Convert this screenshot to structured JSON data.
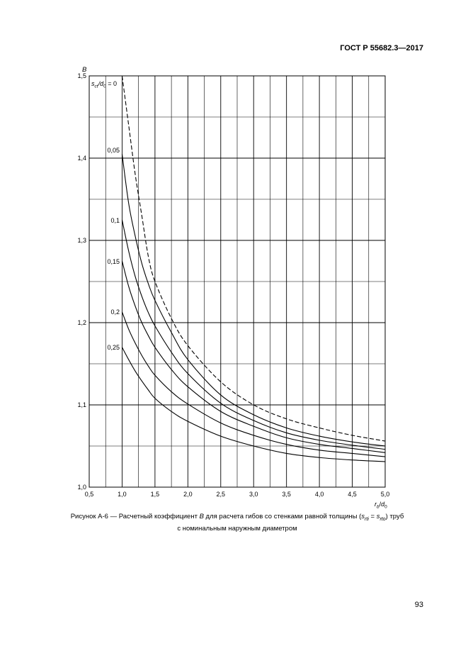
{
  "document": {
    "header": "ГОСТ Р 55682.3—2017",
    "page_number": "93"
  },
  "caption": {
    "line1_part1": "Рисунок А-6 — Расчетный коэффициент ",
    "var_B": "B",
    "line1_part2": " для расчета гибов со стенками равной толщины (",
    "s_rti": "s",
    "s_rti_sub": "rti",
    "eq": " = ",
    "s_rto": "s",
    "s_rto_sub": "rto",
    "line1_part3": ") труб",
    "line2": "с номинальным наружным диаметром"
  },
  "chart_data": {
    "type": "line",
    "ylabel": "B",
    "xlabel_main": "r",
    "xlabel_sub_main": "b",
    "xlabel_sep": "/",
    "xlabel_den": "d",
    "xlabel_sub_den": "0",
    "xlim": [
      0.5,
      5.0
    ],
    "ylim": [
      1.0,
      1.5
    ],
    "x_ticks": [
      "0,5",
      "1,0",
      "1,5",
      "2,0",
      "2,5",
      "3,0",
      "3,5",
      "4,0",
      "4,5",
      "5,0"
    ],
    "y_ticks": [
      "1,0",
      "1,1",
      "1,2",
      "1,3",
      "1,4",
      "1,5"
    ],
    "series_label_prefix": "s",
    "series_label_prefix_sub": "ct",
    "series_label_sep": "/d",
    "series_label_den_sub": "0",
    "series_label_eq": " = ",
    "grid": true,
    "series": [
      {
        "name": "0",
        "dashed": true,
        "x": [
          1.0,
          1.1,
          1.2,
          1.3,
          1.4,
          1.5,
          1.75,
          2.0,
          2.5,
          3.0,
          3.5,
          4.0,
          4.5,
          5.0
        ],
        "y": [
          1.5,
          1.44,
          1.38,
          1.33,
          1.28,
          1.25,
          1.205,
          1.172,
          1.128,
          1.1,
          1.083,
          1.072,
          1.063,
          1.056
        ]
      },
      {
        "name": "0,05",
        "dashed": false,
        "x": [
          1.0,
          1.1,
          1.2,
          1.3,
          1.4,
          1.5,
          1.75,
          2.0,
          2.5,
          3.0,
          3.5,
          4.0,
          4.5,
          5.0
        ],
        "y": [
          1.405,
          1.345,
          1.305,
          1.272,
          1.247,
          1.227,
          1.188,
          1.155,
          1.112,
          1.088,
          1.072,
          1.062,
          1.055,
          1.05
        ]
      },
      {
        "name": "0,1",
        "dashed": false,
        "x": [
          1.0,
          1.1,
          1.2,
          1.3,
          1.4,
          1.5,
          1.75,
          2.0,
          2.5,
          3.0,
          3.5,
          4.0,
          4.5,
          5.0
        ],
        "y": [
          1.325,
          1.287,
          1.256,
          1.232,
          1.212,
          1.196,
          1.164,
          1.138,
          1.102,
          1.081,
          1.066,
          1.057,
          1.051,
          1.046
        ]
      },
      {
        "name": "0,15",
        "dashed": false,
        "x": [
          1.0,
          1.1,
          1.2,
          1.3,
          1.4,
          1.5,
          1.75,
          2.0,
          2.5,
          3.0,
          3.5,
          4.0,
          4.5,
          5.0
        ],
        "y": [
          1.275,
          1.244,
          1.22,
          1.2,
          1.184,
          1.17,
          1.143,
          1.122,
          1.092,
          1.074,
          1.06,
          1.052,
          1.047,
          1.042
        ]
      },
      {
        "name": "0,2",
        "dashed": false,
        "x": [
          1.0,
          1.1,
          1.2,
          1.3,
          1.4,
          1.5,
          1.75,
          2.0,
          2.5,
          3.0,
          3.5,
          4.0,
          4.5,
          5.0
        ],
        "y": [
          1.213,
          1.192,
          1.175,
          1.16,
          1.147,
          1.136,
          1.116,
          1.101,
          1.078,
          1.063,
          1.052,
          1.045,
          1.041,
          1.037
        ]
      },
      {
        "name": "0,25",
        "dashed": false,
        "x": [
          1.0,
          1.1,
          1.2,
          1.3,
          1.4,
          1.5,
          1.75,
          2.0,
          2.5,
          3.0,
          3.5,
          4.0,
          4.5,
          5.0
        ],
        "y": [
          1.17,
          1.155,
          1.141,
          1.129,
          1.118,
          1.108,
          1.092,
          1.08,
          1.062,
          1.05,
          1.041,
          1.036,
          1.033,
          1.031
        ]
      }
    ]
  }
}
